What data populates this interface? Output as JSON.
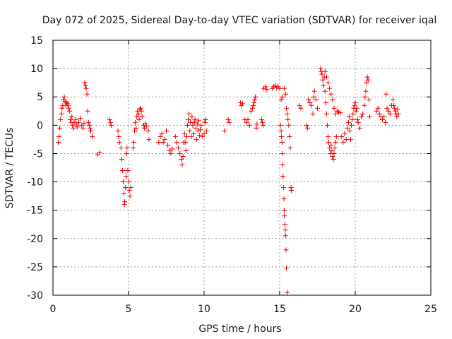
{
  "chart_data": {
    "type": "scatter",
    "title": "Day 072 of 2025, Sidereal Day-to-day VTEC variation (SDTVAR) for receiver iqal",
    "xlabel": "GPS time / hours",
    "ylabel": "SDTVAR / TECUs",
    "xlim": [
      0,
      25
    ],
    "ylim": [
      -30,
      15
    ],
    "xticks": [
      0,
      5,
      10,
      15,
      20,
      25
    ],
    "yticks": [
      -30,
      -25,
      -20,
      -15,
      -10,
      -5,
      0,
      5,
      10,
      15
    ],
    "grid": true,
    "marker": "+",
    "marker_color": "#ff0000",
    "series": [
      {
        "name": "SDTVAR",
        "points": [
          [
            0.35,
            -3.0
          ],
          [
            0.4,
            -2.0
          ],
          [
            0.45,
            -0.5
          ],
          [
            0.5,
            1.0
          ],
          [
            0.55,
            2.0
          ],
          [
            0.6,
            3.0
          ],
          [
            0.65,
            3.5
          ],
          [
            0.7,
            4.5
          ],
          [
            0.75,
            5.0
          ],
          [
            0.8,
            4.2
          ],
          [
            0.85,
            3.5
          ],
          [
            0.9,
            4.0
          ],
          [
            0.95,
            3.8
          ],
          [
            1.0,
            3.5
          ],
          [
            1.05,
            3.0
          ],
          [
            1.1,
            2.5
          ],
          [
            1.15,
            1.0
          ],
          [
            1.2,
            0.5
          ],
          [
            1.25,
            1.5
          ],
          [
            1.3,
            0.0
          ],
          [
            1.35,
            -0.5
          ],
          [
            1.4,
            0.5
          ],
          [
            1.5,
            1.0
          ],
          [
            1.55,
            0.2
          ],
          [
            1.6,
            -0.3
          ],
          [
            1.7,
            0.5
          ],
          [
            1.8,
            1.2
          ],
          [
            1.9,
            0.0
          ],
          [
            2.0,
            -0.5
          ],
          [
            2.05,
            0.3
          ],
          [
            2.1,
            7.5
          ],
          [
            2.15,
            7.0
          ],
          [
            2.2,
            6.5
          ],
          [
            2.25,
            5.5
          ],
          [
            2.3,
            2.5
          ],
          [
            2.35,
            0.5
          ],
          [
            2.4,
            0.0
          ],
          [
            2.45,
            -0.5
          ],
          [
            2.5,
            -1.0
          ],
          [
            2.6,
            -2.0
          ],
          [
            2.95,
            -5.2
          ],
          [
            3.1,
            -4.8
          ],
          [
            3.75,
            1.0
          ],
          [
            3.8,
            0.5
          ],
          [
            3.85,
            0.0
          ],
          [
            4.3,
            -1.0
          ],
          [
            4.35,
            -2.0
          ],
          [
            4.4,
            -3.0
          ],
          [
            4.5,
            -4.0
          ],
          [
            4.55,
            -6.0
          ],
          [
            4.6,
            -8.0
          ],
          [
            4.65,
            -10.0
          ],
          [
            4.7,
            -12.0
          ],
          [
            4.72,
            -14.0
          ],
          [
            4.75,
            -13.5
          ],
          [
            4.8,
            -11.0
          ],
          [
            4.85,
            -9.0
          ],
          [
            4.88,
            -5.0
          ],
          [
            4.9,
            -4.0
          ],
          [
            4.95,
            -8.0
          ],
          [
            5.0,
            -10.0
          ],
          [
            5.05,
            -11.5
          ],
          [
            5.1,
            -12.5
          ],
          [
            5.15,
            -11.0
          ],
          [
            5.3,
            -4.0
          ],
          [
            5.35,
            -3.0
          ],
          [
            5.4,
            -1.0
          ],
          [
            5.45,
            0.5
          ],
          [
            5.5,
            -0.5
          ],
          [
            5.55,
            1.5
          ],
          [
            5.6,
            2.5
          ],
          [
            5.65,
            2.0
          ],
          [
            5.7,
            1.0
          ],
          [
            5.75,
            2.8
          ],
          [
            5.8,
            3.0
          ],
          [
            5.85,
            2.5
          ],
          [
            5.9,
            1.5
          ],
          [
            6.0,
            0.0
          ],
          [
            6.05,
            -0.5
          ],
          [
            6.1,
            0.3
          ],
          [
            6.2,
            -0.2
          ],
          [
            6.3,
            -1.0
          ],
          [
            6.35,
            -2.5
          ],
          [
            7.0,
            -3.0
          ],
          [
            7.1,
            -2.0
          ],
          [
            7.2,
            -1.5
          ],
          [
            7.3,
            -3.0
          ],
          [
            7.4,
            -2.5
          ],
          [
            7.5,
            -1.0
          ],
          [
            7.6,
            -3.5
          ],
          [
            7.7,
            -4.5
          ],
          [
            7.8,
            -5.0
          ],
          [
            7.9,
            -4.2
          ],
          [
            8.1,
            -2.0
          ],
          [
            8.2,
            -3.0
          ],
          [
            8.3,
            -4.0
          ],
          [
            8.4,
            -5.0
          ],
          [
            8.5,
            -6.0
          ],
          [
            8.55,
            -7.0
          ],
          [
            8.6,
            -5.5
          ],
          [
            8.65,
            -3.0
          ],
          [
            8.7,
            -1.5
          ],
          [
            8.75,
            -3.0
          ],
          [
            8.8,
            -4.5
          ],
          [
            8.85,
            -2.0
          ],
          [
            8.9,
            0.0
          ],
          [
            8.95,
            1.0
          ],
          [
            9.0,
            2.0
          ],
          [
            9.05,
            -1.0
          ],
          [
            9.1,
            0.5
          ],
          [
            9.15,
            -2.0
          ],
          [
            9.2,
            1.5
          ],
          [
            9.25,
            0.0
          ],
          [
            9.3,
            -1.5
          ],
          [
            9.35,
            0.5
          ],
          [
            9.4,
            1.0
          ],
          [
            9.45,
            -0.5
          ],
          [
            9.5,
            -2.5
          ],
          [
            9.55,
            0.2
          ],
          [
            9.6,
            -1.0
          ],
          [
            9.65,
            0.8
          ],
          [
            9.7,
            -1.8
          ],
          [
            9.75,
            -0.8
          ],
          [
            9.8,
            0.0
          ],
          [
            9.9,
            -2.0
          ],
          [
            10.0,
            -1.5
          ],
          [
            10.05,
            0.5
          ],
          [
            10.1,
            1.0
          ],
          [
            10.15,
            -1.0
          ],
          [
            11.35,
            -1.0
          ],
          [
            11.6,
            1.0
          ],
          [
            11.65,
            0.5
          ],
          [
            12.4,
            4.0
          ],
          [
            12.45,
            3.5
          ],
          [
            12.55,
            3.8
          ],
          [
            12.7,
            1.0
          ],
          [
            12.8,
            0.5
          ],
          [
            12.9,
            1.0
          ],
          [
            13.0,
            0.0
          ],
          [
            13.1,
            2.5
          ],
          [
            13.2,
            3.0
          ],
          [
            13.25,
            3.5
          ],
          [
            13.3,
            4.0
          ],
          [
            13.35,
            4.5
          ],
          [
            13.4,
            5.0
          ],
          [
            13.45,
            -0.5
          ],
          [
            13.5,
            0.2
          ],
          [
            13.8,
            1.0
          ],
          [
            13.85,
            0.5
          ],
          [
            13.9,
            0.0
          ],
          [
            13.95,
            6.5
          ],
          [
            14.05,
            6.8
          ],
          [
            14.15,
            6.3
          ],
          [
            14.5,
            6.5
          ],
          [
            14.6,
            6.8
          ],
          [
            14.7,
            7.0
          ],
          [
            14.8,
            6.6
          ],
          [
            14.9,
            6.8
          ],
          [
            15.0,
            6.5
          ],
          [
            15.05,
            0.0
          ],
          [
            15.1,
            -1.0
          ],
          [
            15.12,
            -2.0
          ],
          [
            15.15,
            -3.0
          ],
          [
            15.18,
            -5.0
          ],
          [
            15.2,
            -7.0
          ],
          [
            15.22,
            -9.0
          ],
          [
            15.25,
            -11.0
          ],
          [
            15.28,
            -13.0
          ],
          [
            15.3,
            -15.0
          ],
          [
            15.32,
            -16.0
          ],
          [
            15.35,
            -17.5
          ],
          [
            15.37,
            -18.5
          ],
          [
            15.39,
            -19.5
          ],
          [
            15.42,
            -22.0
          ],
          [
            15.45,
            -25.2
          ],
          [
            15.5,
            -29.5
          ],
          [
            15.1,
            4.5
          ],
          [
            15.2,
            5.0
          ],
          [
            15.3,
            6.5
          ],
          [
            15.4,
            5.5
          ],
          [
            15.45,
            3.0
          ],
          [
            15.5,
            2.0
          ],
          [
            15.55,
            1.0
          ],
          [
            15.6,
            0.0
          ],
          [
            15.65,
            -2.0
          ],
          [
            15.7,
            -4.0
          ],
          [
            15.75,
            -11.0
          ],
          [
            15.78,
            -11.5
          ],
          [
            16.3,
            3.5
          ],
          [
            16.4,
            3.0
          ],
          [
            16.8,
            0.0
          ],
          [
            16.85,
            -0.5
          ],
          [
            16.9,
            4.5
          ],
          [
            17.0,
            4.0
          ],
          [
            17.1,
            3.5
          ],
          [
            17.2,
            2.0
          ],
          [
            17.25,
            5.0
          ],
          [
            17.3,
            6.0
          ],
          [
            17.4,
            4.5
          ],
          [
            17.5,
            3.0
          ],
          [
            17.7,
            10.0
          ],
          [
            17.75,
            9.5
          ],
          [
            17.8,
            9.0
          ],
          [
            17.85,
            8.0
          ],
          [
            17.9,
            7.0
          ],
          [
            17.95,
            8.5
          ],
          [
            18.0,
            6.0
          ],
          [
            18.05,
            4.0
          ],
          [
            18.1,
            2.0
          ],
          [
            18.15,
            0.0
          ],
          [
            18.2,
            -2.0
          ],
          [
            18.25,
            -3.0
          ],
          [
            18.3,
            -4.0
          ],
          [
            18.35,
            -5.0
          ],
          [
            18.4,
            -3.5
          ],
          [
            18.45,
            -4.5
          ],
          [
            18.5,
            -5.5
          ],
          [
            18.55,
            -6.0
          ],
          [
            18.6,
            -5.0
          ],
          [
            18.65,
            -4.0
          ],
          [
            18.7,
            -3.0
          ],
          [
            18.75,
            -2.0
          ],
          [
            18.0,
            9.5
          ],
          [
            18.1,
            8.5
          ],
          [
            18.2,
            7.5
          ],
          [
            18.3,
            6.5
          ],
          [
            18.4,
            5.5
          ],
          [
            18.5,
            4.5
          ],
          [
            18.6,
            3.0
          ],
          [
            18.7,
            2.0
          ],
          [
            18.8,
            2.5
          ],
          [
            18.9,
            2.3
          ],
          [
            19.0,
            2.2
          ],
          [
            19.1,
            -2.0
          ],
          [
            19.2,
            -3.0
          ],
          [
            19.3,
            -1.5
          ],
          [
            19.4,
            -2.5
          ],
          [
            19.5,
            -0.5
          ],
          [
            19.55,
            0.5
          ],
          [
            19.6,
            1.5
          ],
          [
            19.65,
            -1.0
          ],
          [
            19.7,
            -2.5
          ],
          [
            19.75,
            0.0
          ],
          [
            19.8,
            1.0
          ],
          [
            19.85,
            2.0
          ],
          [
            19.9,
            3.0
          ],
          [
            19.95,
            3.5
          ],
          [
            20.0,
            4.0
          ],
          [
            20.05,
            2.5
          ],
          [
            20.1,
            3.0
          ],
          [
            20.15,
            1.0
          ],
          [
            20.2,
            0.5
          ],
          [
            20.3,
            -0.5
          ],
          [
            20.4,
            1.5
          ],
          [
            20.5,
            2.0
          ],
          [
            20.6,
            3.5
          ],
          [
            20.65,
            5.0
          ],
          [
            20.7,
            6.0
          ],
          [
            20.75,
            7.5
          ],
          [
            20.8,
            8.5
          ],
          [
            20.85,
            8.0
          ],
          [
            20.9,
            4.5
          ],
          [
            20.95,
            1.5
          ],
          [
            21.4,
            2.5
          ],
          [
            21.5,
            3.0
          ],
          [
            21.6,
            2.0
          ],
          [
            21.7,
            1.5
          ],
          [
            21.8,
            1.0
          ],
          [
            21.9,
            1.5
          ],
          [
            22.0,
            0.5
          ],
          [
            22.05,
            5.5
          ],
          [
            22.1,
            3.0
          ],
          [
            22.2,
            2.5
          ],
          [
            22.3,
            2.0
          ],
          [
            22.4,
            3.5
          ],
          [
            22.5,
            4.5
          ],
          [
            22.55,
            3.5
          ],
          [
            22.6,
            3.0
          ],
          [
            22.65,
            2.5
          ],
          [
            22.7,
            2.0
          ],
          [
            22.75,
            1.5
          ],
          [
            22.8,
            2.8
          ],
          [
            22.85,
            2.0
          ]
        ]
      }
    ]
  }
}
